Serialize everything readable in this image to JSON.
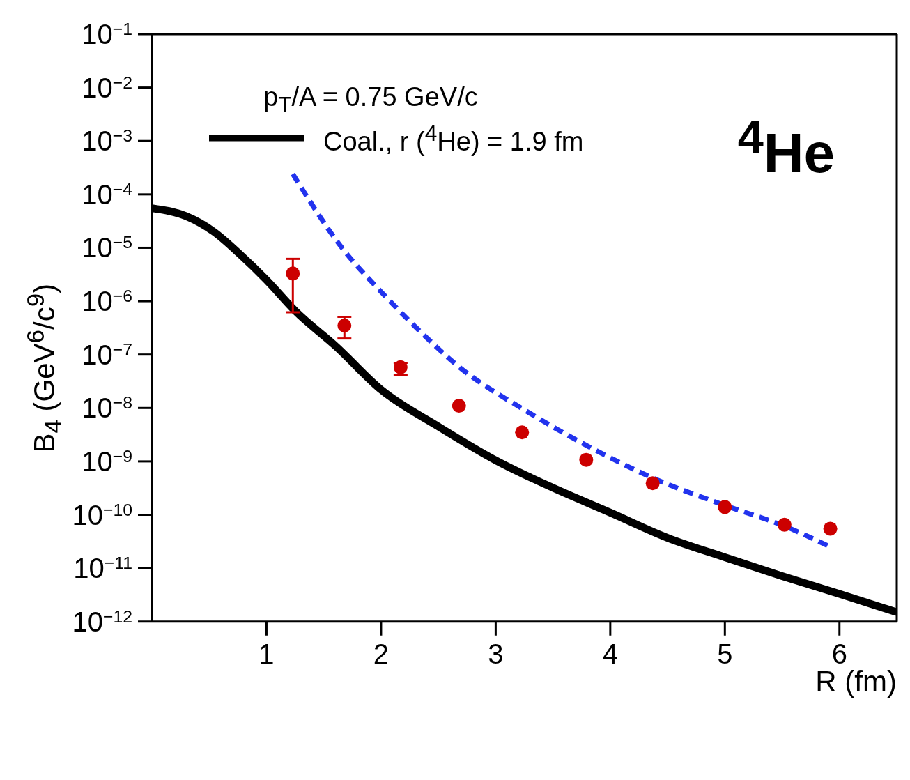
{
  "chart_data": {
    "type": "line",
    "xlabel": "R (fm)",
    "ylabel": "B$_{4}$ (GeV$^{6}$/c$^{9}$)",
    "legend_title": "p$_{T}$/A = 0.75 GeV/c",
    "legend": "top left",
    "grid": false,
    "log": "y",
    "annotations": [
      "$^{4}$He"
    ],
    "xlim": [
      0,
      6.5
    ],
    "xticks": [
      1,
      2,
      3,
      4,
      5,
      6
    ],
    "ylim": [
      1e-12,
      0.1
    ],
    "yticks": [
      {
        "value": 1e-12,
        "label": "10$^{−12}$"
      },
      {
        "value": 1e-11,
        "label": "10$^{−11}$"
      },
      {
        "value": 1e-10,
        "label": "10$^{−10}$"
      },
      {
        "value": 1e-09,
        "label": "10$^{−9}$"
      },
      {
        "value": 1e-08,
        "label": "10$^{−8}$"
      },
      {
        "value": 1e-07,
        "label": "10$^{−7}$"
      },
      {
        "value": 1e-06,
        "label": "10$^{−6}$"
      },
      {
        "value": 1e-05,
        "label": "10$^{−5}$"
      },
      {
        "value": 0.0001,
        "label": "10$^{−4}$"
      },
      {
        "value": 0.001,
        "label": "10$^{−3}$"
      },
      {
        "value": 0.01,
        "label": "10$^{−2}$"
      },
      {
        "value": 0.1,
        "label": "10$^{−1}$"
      }
    ],
    "series": [
      {
        "type": "line",
        "name": "Coal., r ($^{4}$He) = 1.9 fm",
        "color": "#000000",
        "line_style": "solid",
        "marker": "none",
        "x": [
          0,
          0.3,
          0.54,
          0.77,
          1,
          1.25,
          1.61,
          2,
          2.5,
          3,
          3.5,
          4,
          4.5,
          5,
          5.5,
          6,
          6.5
        ],
        "values": [
          5.5e-05,
          3.9e-05,
          2e-05,
          7.5e-06,
          2.5e-06,
          6.6e-07,
          1.4e-07,
          2.2e-08,
          4.5e-09,
          1.05e-09,
          3.2e-10,
          1.1e-10,
          3.7e-11,
          1.6e-11,
          7.1e-12,
          3.3e-12,
          1.5e-12
        ]
      },
      {
        "type": "line",
        "color": "#2233ee",
        "line_style": "dashed",
        "marker": "none",
        "x": [
          1.23,
          1.67,
          2.0,
          2.32,
          2.68,
          3.27,
          3.81,
          4.4,
          5.0,
          5.54,
          5.92
        ],
        "values": [
          0.00024,
          9.3e-06,
          1.5e-06,
          3e-07,
          5.9e-08,
          8.7e-09,
          1.9e-09,
          4.6e-10,
          1.5e-10,
          5.9e-11,
          2.5e-11
        ]
      },
      {
        "type": "scatter",
        "color": "#cc0000",
        "marker": "circle",
        "x": [
          1.23,
          1.68,
          2.17,
          2.68,
          3.23,
          3.79,
          4.37,
          5.0,
          5.52,
          5.92
        ],
        "values": [
          3.3e-06,
          3.5e-07,
          5.8e-08,
          1.1e-08,
          3.5e-09,
          1.07e-09,
          3.9e-10,
          1.4e-10,
          6.5e-11,
          5.5e-11
        ],
        "errors": [
          [
            6.2e-07,
            6.2e-06
          ],
          [
            2e-07,
            5.1e-07
          ],
          [
            4.1e-08,
            7e-08
          ],
          null,
          null,
          null,
          null,
          null,
          null,
          null
        ]
      }
    ]
  }
}
